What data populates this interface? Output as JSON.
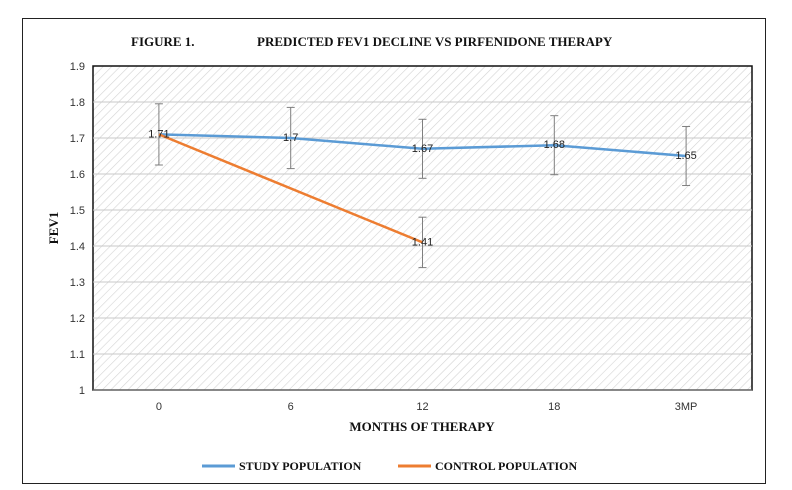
{
  "chart_data": {
    "type": "line",
    "figure_label": "FIGURE 1.",
    "title": "PREDICTED FEV1 DECLINE VS PIRFENIDONE THERAPY",
    "xlabel": "MONTHS OF THERAPY",
    "ylabel": "FEV1",
    "categories": [
      "0",
      "6",
      "12",
      "18",
      "3MP"
    ],
    "ylim": [
      1,
      1.9
    ],
    "yticks": [
      "1",
      "1.1",
      "1.2",
      "1.3",
      "1.4",
      "1.5",
      "1.6",
      "1.7",
      "1.8",
      "1.9"
    ],
    "grid": true,
    "legend_position": "bottom",
    "series": [
      {
        "name": "STUDY POPULATION",
        "color": "#5b9bd5",
        "values": [
          1.71,
          1.7,
          1.67,
          1.68,
          1.65
        ],
        "labels": [
          "1.71",
          "1.7",
          "1.67",
          "1.68",
          "1.65"
        ],
        "error_low": [
          1.625,
          1.615,
          1.588,
          1.598,
          1.568
        ],
        "error_high": [
          1.795,
          1.785,
          1.752,
          1.762,
          1.732
        ]
      },
      {
        "name": "CONTROL POPULATION",
        "color": "#ed7d31",
        "values": [
          1.71,
          null,
          1.41,
          null,
          null
        ],
        "labels": [
          "",
          "",
          "1.41",
          "",
          ""
        ],
        "error_low": [
          null,
          null,
          1.34,
          null,
          null
        ],
        "error_high": [
          null,
          null,
          1.48,
          null,
          null
        ]
      }
    ]
  }
}
